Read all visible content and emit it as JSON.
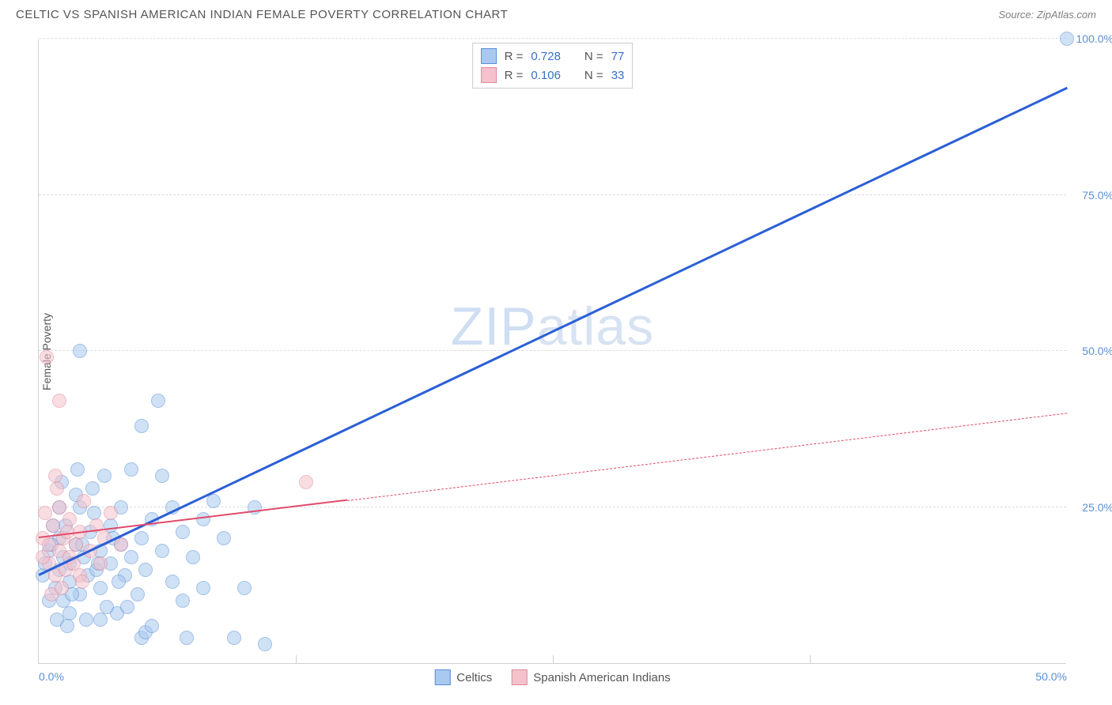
{
  "header": {
    "title": "CELTIC VS SPANISH AMERICAN INDIAN FEMALE POVERTY CORRELATION CHART",
    "source_prefix": "Source: ",
    "source_name": "ZipAtlas.com"
  },
  "watermark": {
    "part1": "ZIP",
    "part2": "atlas"
  },
  "chart": {
    "type": "scatter",
    "ylabel": "Female Poverty",
    "xlim": [
      0,
      50
    ],
    "ylim": [
      0,
      100
    ],
    "x_ticks": [
      0,
      12.5,
      25,
      37.5,
      50
    ],
    "x_tick_labels": [
      "0.0%",
      "",
      "",
      "",
      "50.0%"
    ],
    "y_ticks": [
      25,
      50,
      75,
      100
    ],
    "y_tick_labels": [
      "25.0%",
      "50.0%",
      "75.0%",
      "100.0%"
    ],
    "background_color": "#ffffff",
    "grid_color": "#dddddd",
    "axis_color": "#d0d0d0",
    "tick_label_color": "#5a8fd6",
    "point_radius": 9,
    "point_opacity": 0.55,
    "series": [
      {
        "name": "Celtics",
        "color_fill": "#a9c9ee",
        "color_stroke": "#5a8fd6",
        "r_value": "0.728",
        "n_value": "77",
        "trend": {
          "x1": 0,
          "y1": 14,
          "x2": 50,
          "y2": 92,
          "color": "#2a5fd6",
          "width": 2.5,
          "style": "solid",
          "solid_extent_x": 50
        },
        "points": [
          [
            0.2,
            14
          ],
          [
            0.5,
            18
          ],
          [
            0.8,
            12
          ],
          [
            1.0,
            20
          ],
          [
            1.0,
            15
          ],
          [
            1.2,
            10
          ],
          [
            1.3,
            22
          ],
          [
            1.5,
            16
          ],
          [
            1.5,
            13
          ],
          [
            1.8,
            19
          ],
          [
            2.0,
            25
          ],
          [
            2.0,
            11
          ],
          [
            2.2,
            17
          ],
          [
            2.4,
            14
          ],
          [
            2.5,
            21
          ],
          [
            2.6,
            28
          ],
          [
            2.8,
            15
          ],
          [
            3.0,
            18
          ],
          [
            3.0,
            12
          ],
          [
            3.2,
            30
          ],
          [
            3.5,
            22
          ],
          [
            3.5,
            16
          ],
          [
            3.8,
            8
          ],
          [
            4.0,
            19
          ],
          [
            4.0,
            25
          ],
          [
            4.2,
            14
          ],
          [
            4.5,
            31
          ],
          [
            4.5,
            17
          ],
          [
            4.8,
            11
          ],
          [
            5.0,
            20
          ],
          [
            5.0,
            38
          ],
          [
            5.0,
            4
          ],
          [
            5.2,
            5
          ],
          [
            5.2,
            15
          ],
          [
            5.5,
            23
          ],
          [
            5.5,
            6
          ],
          [
            5.8,
            42
          ],
          [
            6.0,
            18
          ],
          [
            6.0,
            30
          ],
          [
            6.5,
            25
          ],
          [
            6.5,
            13
          ],
          [
            7.0,
            21
          ],
          [
            7.0,
            10
          ],
          [
            7.2,
            4
          ],
          [
            7.5,
            17
          ],
          [
            8.0,
            23
          ],
          [
            8.0,
            12
          ],
          [
            8.5,
            26
          ],
          [
            9.0,
            20
          ],
          [
            9.5,
            4
          ],
          [
            10.0,
            12
          ],
          [
            10.5,
            25
          ],
          [
            11.0,
            3
          ],
          [
            2.0,
            50
          ],
          [
            1.5,
            8
          ],
          [
            0.9,
            7
          ],
          [
            1.0,
            25
          ],
          [
            1.8,
            27
          ],
          [
            3.0,
            7
          ],
          [
            3.3,
            9
          ],
          [
            0.5,
            10
          ],
          [
            1.2,
            17
          ],
          [
            2.1,
            19
          ],
          [
            0.7,
            22
          ],
          [
            1.6,
            11
          ],
          [
            2.7,
            24
          ],
          [
            3.9,
            13
          ],
          [
            1.1,
            29
          ],
          [
            0.3,
            16
          ],
          [
            2.3,
            7
          ],
          [
            4.3,
            9
          ],
          [
            1.9,
            31
          ],
          [
            0.6,
            19
          ],
          [
            1.4,
            6
          ],
          [
            2.9,
            16
          ],
          [
            3.6,
            20
          ],
          [
            50.0,
            100
          ]
        ]
      },
      {
        "name": "Spanish American Indians",
        "color_fill": "#f4c2cc",
        "color_stroke": "#e08a9a",
        "r_value": "0.106",
        "n_value": "33",
        "trend": {
          "x1": 0,
          "y1": 20,
          "x2": 50,
          "y2": 40,
          "color": "#e04a6a",
          "width": 2,
          "style": "solid-then-dash",
          "solid_extent_x": 15
        },
        "points": [
          [
            0.2,
            20
          ],
          [
            0.3,
            24
          ],
          [
            0.5,
            16
          ],
          [
            0.5,
            19
          ],
          [
            0.7,
            22
          ],
          [
            0.8,
            14
          ],
          [
            1.0,
            25
          ],
          [
            1.0,
            18
          ],
          [
            1.2,
            20
          ],
          [
            1.3,
            15
          ],
          [
            1.5,
            23
          ],
          [
            1.5,
            17
          ],
          [
            1.8,
            19
          ],
          [
            2.0,
            21
          ],
          [
            2.0,
            14
          ],
          [
            2.2,
            26
          ],
          [
            2.5,
            18
          ],
          [
            2.8,
            22
          ],
          [
            3.0,
            16
          ],
          [
            3.2,
            20
          ],
          [
            3.5,
            24
          ],
          [
            4.0,
            19
          ],
          [
            0.4,
            49
          ],
          [
            1.0,
            42
          ],
          [
            0.6,
            11
          ],
          [
            1.1,
            12
          ],
          [
            0.9,
            28
          ],
          [
            1.4,
            21
          ],
          [
            1.7,
            16
          ],
          [
            2.1,
            13
          ],
          [
            0.2,
            17
          ],
          [
            13.0,
            29
          ],
          [
            0.8,
            30
          ]
        ]
      }
    ],
    "legend_top": {
      "r_label": "R =",
      "n_label": "N ="
    },
    "legend_bottom": {
      "items": [
        {
          "label": "Celtics",
          "fill": "#a9c9ee",
          "stroke": "#5a8fd6"
        },
        {
          "label": "Spanish American Indians",
          "fill": "#f4c2cc",
          "stroke": "#e08a9a"
        }
      ]
    }
  }
}
